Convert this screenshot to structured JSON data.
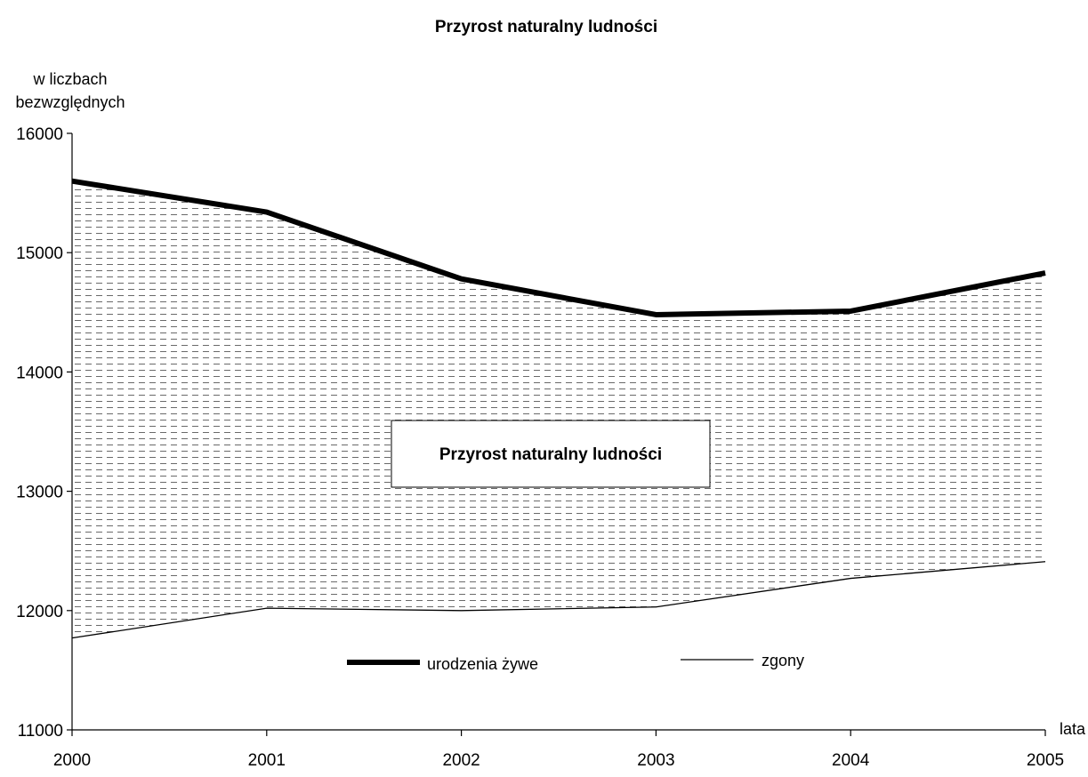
{
  "chart_data": {
    "type": "area",
    "title": "Przyrost naturalny ludności",
    "ylabel_line1": "w liczbach",
    "ylabel_line2": "bezwzględnych",
    "xlabel": "lata",
    "x": [
      2000,
      2001,
      2002,
      2003,
      2004,
      2005
    ],
    "ylim": [
      11000,
      16000
    ],
    "yticks": [
      11000,
      12000,
      13000,
      14000,
      15000,
      16000
    ],
    "series": [
      {
        "name": "urodzenia żywe",
        "values": [
          15600,
          15340,
          14780,
          14480,
          14510,
          14830
        ],
        "style": "thick"
      },
      {
        "name": "zgony",
        "values": [
          11770,
          12020,
          12000,
          12030,
          12270,
          12410
        ],
        "style": "thin"
      }
    ],
    "area_label": "Przyrost naturalny ludności",
    "grid": false,
    "legend_position": "bottom-center",
    "colors": {
      "line": "#000000",
      "hatch": "#666666",
      "background": "#ffffff"
    }
  }
}
